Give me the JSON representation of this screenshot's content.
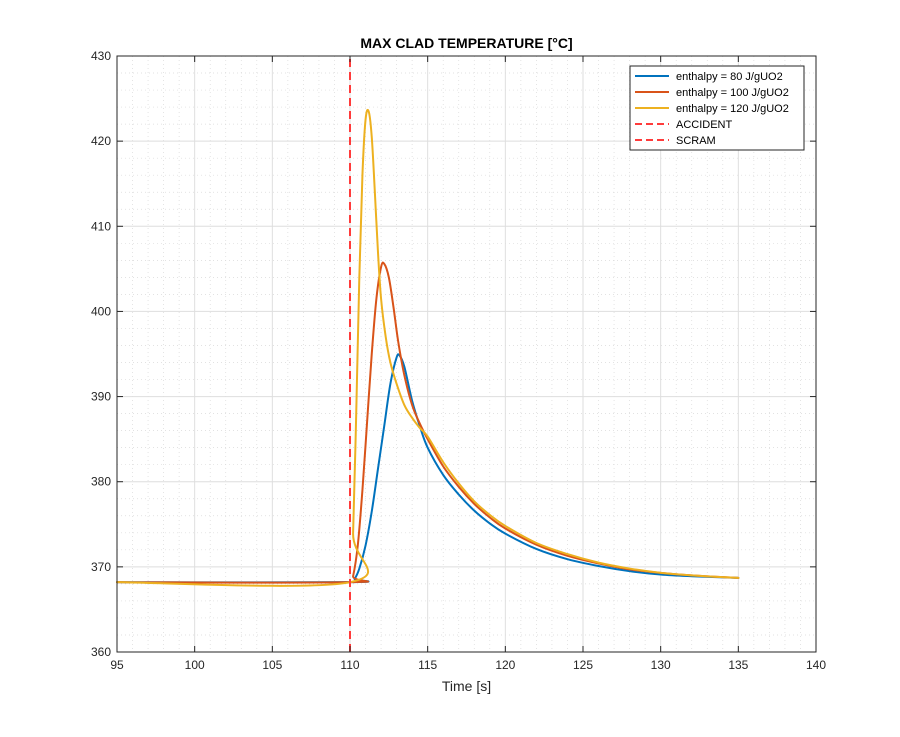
{
  "chart_data": {
    "type": "line",
    "title": "MAX CLAD TEMPERATURE [°C]",
    "xlabel": "Time [s]",
    "ylabel": "",
    "xlim": [
      95,
      140
    ],
    "ylim": [
      360,
      430
    ],
    "xticks": [
      95,
      100,
      105,
      110,
      115,
      120,
      125,
      130,
      135,
      140
    ],
    "yticks": [
      360,
      370,
      380,
      390,
      400,
      410,
      420,
      430
    ],
    "grid": true,
    "minor_grid": true,
    "legend_position": "top-right",
    "series": [
      {
        "name": "enthalpy = 80 J/gUO2",
        "color": "#0072BD",
        "style": "solid",
        "x": [
          95,
          110,
          110.3,
          110.6,
          111.0,
          111.4,
          111.8,
          112.2,
          112.6,
          113.0,
          113.2,
          113.5,
          114.0,
          114.5,
          115.0,
          116,
          117,
          118,
          119,
          120,
          122,
          124,
          126,
          128,
          130,
          132,
          135
        ],
        "y": [
          368.2,
          368.2,
          368.6,
          369.8,
          372.5,
          376.5,
          381.5,
          386.5,
          391.5,
          394.6,
          394.8,
          393.5,
          389.5,
          386.5,
          384.0,
          380.8,
          378.5,
          376.6,
          375.1,
          373.9,
          372.1,
          370.9,
          370.1,
          369.5,
          369.1,
          368.9,
          368.7
        ]
      },
      {
        "name": "enthalpy = 100 J/gUO2",
        "color": "#D95319",
        "style": "solid",
        "x": [
          95,
          110,
          110.2,
          110.5,
          110.8,
          111.1,
          111.4,
          111.7,
          112.0,
          112.2,
          112.5,
          112.8,
          113.1,
          113.5,
          114.0,
          114.5,
          115.0,
          116,
          117,
          118,
          119,
          120,
          122,
          124,
          126,
          128,
          130,
          132,
          135
        ],
        "y": [
          368.2,
          368.2,
          368.9,
          372.5,
          379.0,
          387.0,
          395.0,
          401.5,
          405.2,
          405.6,
          404.0,
          400.5,
          396.5,
          392.5,
          389.0,
          386.8,
          385.0,
          381.8,
          379.4,
          377.4,
          375.8,
          374.5,
          372.6,
          371.3,
          370.4,
          369.7,
          369.3,
          369.0,
          368.7
        ]
      },
      {
        "name": "enthalpy = 120 J/gUO2",
        "color": "#EDB120",
        "style": "solid",
        "x": [
          95,
          110,
          110.2,
          110.4,
          110.6,
          110.8,
          111.0,
          111.2,
          111.4,
          111.6,
          111.8,
          112.0,
          112.3,
          112.6,
          113.0,
          113.5,
          114.0,
          114.5,
          115.0,
          116,
          117,
          118,
          119,
          120,
          122,
          124,
          126,
          128,
          130,
          132,
          135
        ],
        "y": [
          368.2,
          368.2,
          374.0,
          388.0,
          404.0,
          416.0,
          422.5,
          423.5,
          420.5,
          414.0,
          407.0,
          401.5,
          397.0,
          394.0,
          391.5,
          389.0,
          387.5,
          386.3,
          385.3,
          382.3,
          379.8,
          377.7,
          376.1,
          374.8,
          372.8,
          371.5,
          370.5,
          369.8,
          369.3,
          369.0,
          368.7
        ]
      },
      {
        "name": "ACCIDENT",
        "color": "#FF3B3B",
        "style": "dashed",
        "x": [
          110,
          110
        ],
        "y": [
          360,
          430
        ]
      },
      {
        "name": "SCRAM",
        "color": "#FF3B3B",
        "style": "dashed",
        "x": [
          110,
          110
        ],
        "y": [
          360,
          430
        ]
      }
    ]
  }
}
